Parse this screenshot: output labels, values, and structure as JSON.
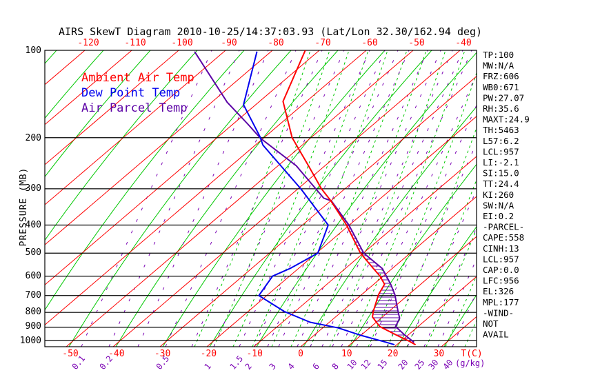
{
  "title": "AIRS SkewT Diagram 2010-10-25/14:37:03.93 (Lat/Lon 32.30/162.94 deg)",
  "legend": {
    "ambient": "Ambient Air Temp",
    "dew": "Dew Point Temp",
    "parcel": "Air Parcel Temp"
  },
  "axes": {
    "pressure_label": "PRESSURE (MB)",
    "pressure_ticks": [
      "100",
      "200",
      "300",
      "400",
      "500",
      "600",
      "700",
      "800",
      "900",
      "1000"
    ],
    "top_temp_ticks": [
      "-120",
      "-110",
      "-100",
      "-90",
      "-80",
      "-70",
      "-60",
      "-50",
      "-40"
    ],
    "bottom_temp_ticks": [
      "-50",
      "-40",
      "-30",
      "-20",
      "-10",
      "0",
      "10",
      "20",
      "30"
    ],
    "temp_unit_label": "T(C)",
    "mixing_unit_label": "(g/kg)",
    "mixing_ratio_ticks": [
      "0.1",
      "0.2",
      "0.5",
      "1",
      "1.5",
      "2",
      "3",
      "4",
      "6",
      "8",
      "10",
      "12",
      "15",
      "20",
      "25",
      "30",
      "40"
    ]
  },
  "stats": [
    "TP:100",
    "MW:N/A",
    "FRZ:606",
    "WB0:671",
    "PW:27.07",
    "RH:35.6",
    "MAXT:24.9",
    "TH:5463",
    "L57:6.2",
    "LCL:957",
    "LI:-2.1",
    "SI:15.0",
    "TT:24.4",
    "KI:260",
    "SW:N/A",
    "EI:0.2",
    "-PARCEL-",
    "CAPE:558",
    "CINH:13",
    "LCL:957",
    "CAP:0.0",
    "LFC:956",
    "EL:326",
    "MPL:177",
    "-WIND-",
    "NOT",
    "AVAIL"
  ],
  "colors": {
    "ambient": "#ff0000",
    "dew": "#0000ee",
    "parcel": "#5b00a5",
    "grid_red": "#ff0000",
    "grid_green": "#00c800",
    "grid_purple": "#7a00b4",
    "pressure_line": "#000000"
  },
  "chart_data": {
    "type": "line",
    "title": "AIRS SkewT Diagram 2010-10-25/14:37:03.93 (Lat/Lon 32.30/162.94 deg)",
    "xlabel": "Temperature (C)",
    "ylabel": "Pressure (MB)",
    "y_scale": "log, inverted (100 mb top to ~1050 mb bottom)",
    "x_skew": "isotherms slope up-right (skew-T)",
    "xlim_at_surface": [
      -55,
      38
    ],
    "ylim": [
      100,
      1050
    ],
    "grid": {
      "isotherms_c": {
        "start": -150,
        "end": 50,
        "step": 10
      },
      "pressure_lines_mb": [
        200,
        300,
        400,
        500,
        600,
        700,
        800,
        900,
        1000
      ],
      "mixing_ratio_g_kg": [
        0.1,
        0.2,
        0.5,
        1,
        1.5,
        2,
        3,
        4,
        6,
        8,
        10,
        12,
        15,
        20,
        25,
        30,
        40
      ],
      "dry_adiabats": "solid green, every 10 C at surface",
      "moist_adiabats": "dashed green, right half of diagram"
    },
    "series": [
      {
        "name": "Ambient Air Temp",
        "color": "#ff0000",
        "points": [
          {
            "p": 100,
            "t": -73
          },
          {
            "p": 150,
            "t": -65
          },
          {
            "p": 200,
            "t": -54
          },
          {
            "p": 250,
            "t": -43.5
          },
          {
            "p": 300,
            "t": -35
          },
          {
            "p": 330,
            "t": -30
          },
          {
            "p": 400,
            "t": -20.6
          },
          {
            "p": 500,
            "t": -10.6
          },
          {
            "p": 565,
            "t": -4
          },
          {
            "p": 600,
            "t": -0.7
          },
          {
            "p": 640,
            "t": 2.3
          },
          {
            "p": 695,
            "t": 3.6
          },
          {
            "p": 795,
            "t": 6.7
          },
          {
            "p": 830,
            "t": 7.9
          },
          {
            "p": 895,
            "t": 11.8
          },
          {
            "p": 960,
            "t": 17.7
          },
          {
            "p": 1005,
            "t": 21.7
          },
          {
            "p": 1034,
            "t": 24
          }
        ]
      },
      {
        "name": "Dew Point Temp",
        "color": "#0000ee",
        "points": [
          {
            "p": 101,
            "t": -83
          },
          {
            "p": 154,
            "t": -72.6
          },
          {
            "p": 198,
            "t": -61.2
          },
          {
            "p": 212,
            "t": -58.4
          },
          {
            "p": 250,
            "t": -49.4
          },
          {
            "p": 300,
            "t": -39.4
          },
          {
            "p": 400,
            "t": -24.5
          },
          {
            "p": 500,
            "t": -19.7
          },
          {
            "p": 565,
            "t": -21.8
          },
          {
            "p": 600,
            "t": -23.6
          },
          {
            "p": 700,
            "t": -21.7
          },
          {
            "p": 795,
            "t": -12.2
          },
          {
            "p": 865,
            "t": -4.1
          },
          {
            "p": 905,
            "t": 3.3
          },
          {
            "p": 960,
            "t": 10
          },
          {
            "p": 1010,
            "t": 16.6
          },
          {
            "p": 1034,
            "t": 19.5
          }
        ]
      },
      {
        "name": "Air Parcel Temp",
        "color": "#5b00a5",
        "points": [
          {
            "p": 101,
            "t": -96.3
          },
          {
            "p": 151,
            "t": -76.7
          },
          {
            "p": 180,
            "t": -66.7
          },
          {
            "p": 201,
            "t": -60.6
          },
          {
            "p": 250,
            "t": -46.1
          },
          {
            "p": 323,
            "t": -32.2
          },
          {
            "p": 330,
            "t": -29.9
          },
          {
            "p": 400,
            "t": -20.1
          },
          {
            "p": 500,
            "t": -9.9
          },
          {
            "p": 565,
            "t": -2.1
          },
          {
            "p": 640,
            "t": 3.6
          },
          {
            "p": 695,
            "t": 7.1
          },
          {
            "p": 795,
            "t": 12
          },
          {
            "p": 838,
            "t": 14
          },
          {
            "p": 895,
            "t": 15.2
          },
          {
            "p": 950,
            "t": 18.8
          },
          {
            "p": 1015,
            "t": 23.1
          }
        ]
      }
    ],
    "annotations": {
      "cape_area": "hatched (horizontal purple lines) between Ambient and Parcel curves from ~956 mb (LFC) up to ~326 mb (EL)"
    }
  }
}
